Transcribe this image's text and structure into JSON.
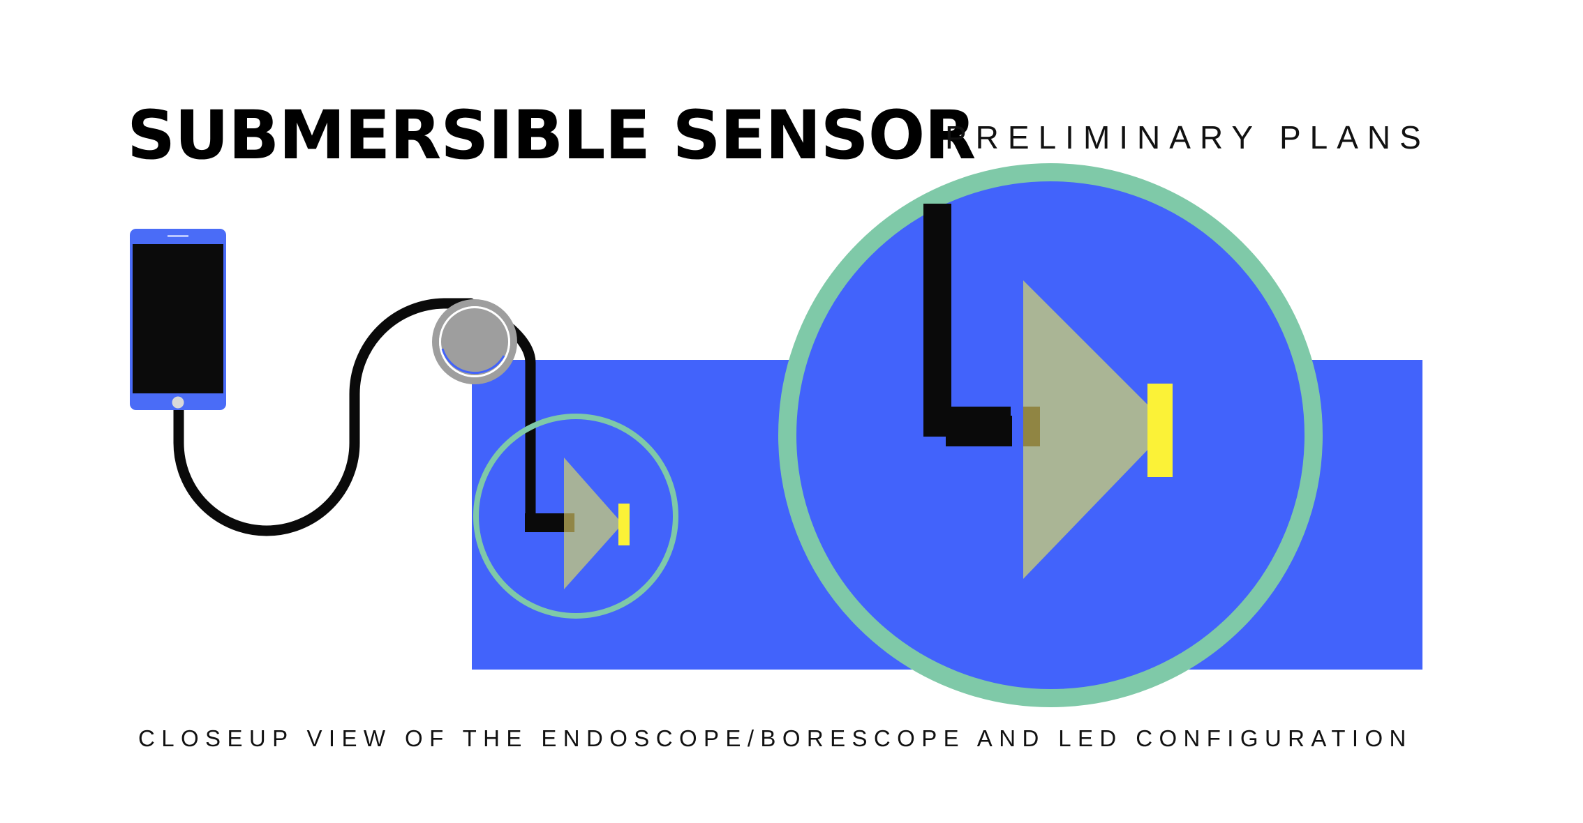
{
  "header": {
    "title": "SUBMERSIBLE SENSOR",
    "subtitle": "PRELIMINARY PLANS"
  },
  "caption": "CLOSEUP VIEW OF THE ENDOSCOPE/BORESCOPE AND LED CONFIGURATION",
  "colors": {
    "water": "#4263fb",
    "ring": "#7fc9a8",
    "cable": "#0a0a0a",
    "camera_cone": "#aab595",
    "led": "#fbf237",
    "connector": "#9e9e9e",
    "phone_body": "#4a6cf7",
    "phone_screen": "#0b0b0b"
  },
  "icons": [
    "smartphone-icon",
    "cable-reel-icon",
    "camera-cone-icon",
    "led-light-icon"
  ]
}
